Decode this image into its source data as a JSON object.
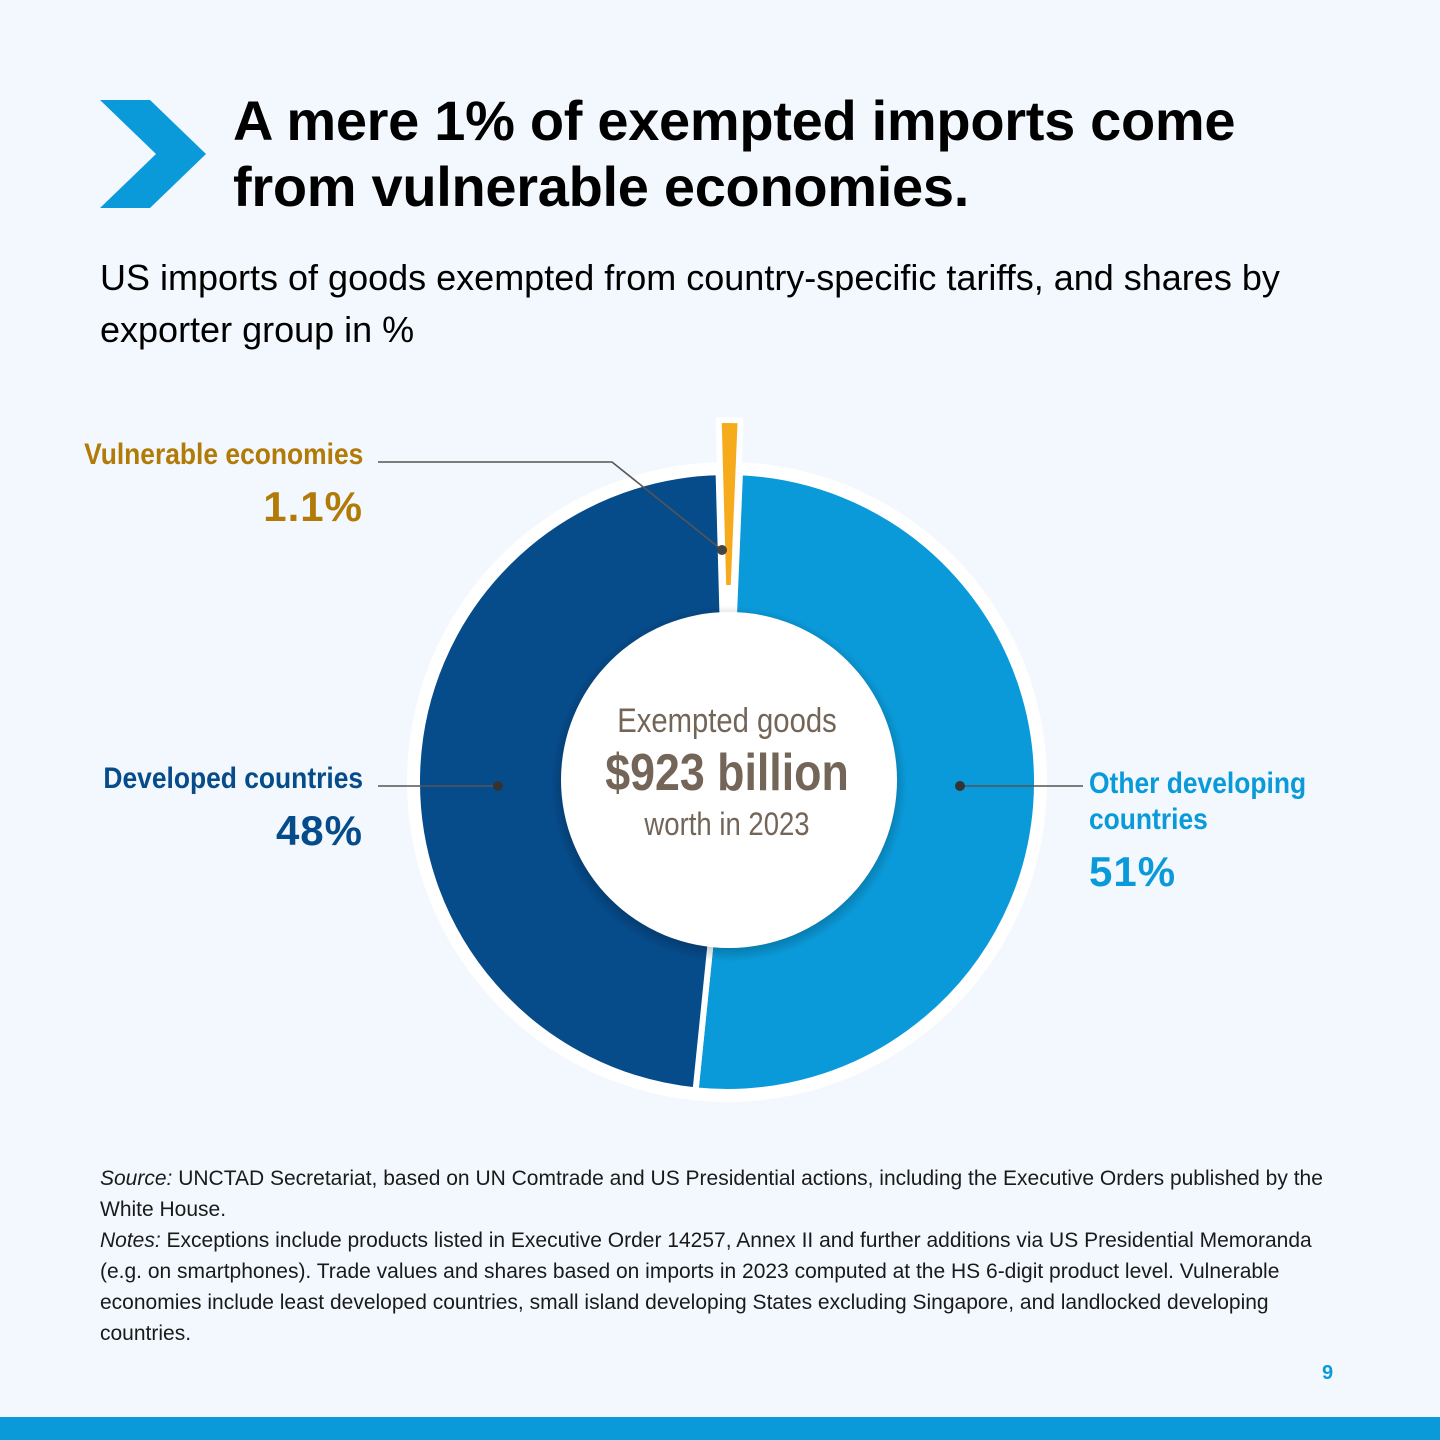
{
  "header": {
    "title": "A mere 1% of exempted imports come from vulnerable economies.",
    "subtitle": "US imports of goods exempted from country-specific tariffs, and shares by exporter group in %"
  },
  "chart_data": {
    "type": "pie",
    "variant": "donut",
    "title": "A mere 1% of exempted imports come from vulnerable economies.",
    "subtitle": "US imports of goods exempted from country-specific tariffs, and shares by exporter group in %",
    "unit": "%",
    "center": {
      "line1": "Exempted goods",
      "value": "$923 billion",
      "line3": "worth in 2023"
    },
    "slices": [
      {
        "name": "Other developing countries",
        "value": 51,
        "value_label": "51%",
        "color": "#0a9ad9"
      },
      {
        "name": "Developed countries",
        "value": 48,
        "value_label": "48%",
        "color": "#064b8a"
      },
      {
        "name": "Vulnerable economies",
        "value": 1.1,
        "value_label": "1.1%",
        "color": "#f5ab1c"
      }
    ]
  },
  "labels": {
    "vulnerable_name": "Vulnerable economies",
    "developed_name": "Developed countries",
    "other_name": "Other developing countries"
  },
  "footer": {
    "source_label": "Source:",
    "source_text": "UNCTAD Secretariat, based on UN Comtrade and US Presidential actions, including the Executive Orders published by the White House.",
    "notes_label": "Notes:",
    "notes_text": "Exceptions include products listed in Executive Order 14257, Annex II and further additions via US Presidential Memoranda (e.g. on smartphones). Trade values and shares based on imports in 2023 computed at the HS 6-digit product level. Vulnerable economies include least developed countries, small island developing States excluding Singapore, and landlocked developing countries.",
    "page_number": "9"
  },
  "colors": {
    "accent": "#0a9ad9",
    "developed": "#064b8a",
    "vulnerable": "#f5ab1c",
    "vulnerable_text": "#b27a06",
    "center_text": "#736558",
    "background": "#f2f8fd"
  }
}
